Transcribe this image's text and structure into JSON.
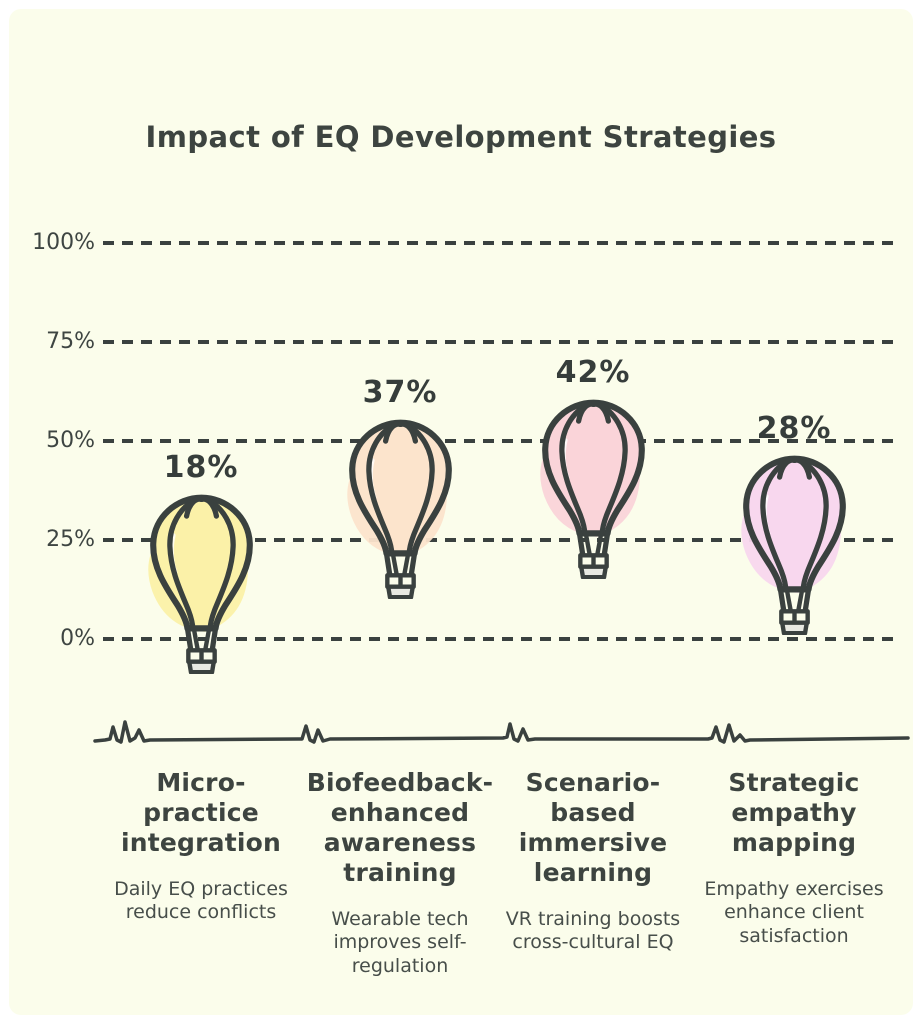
{
  "title": "Impact of EQ Development Strategies",
  "colors": {
    "background": "#fbfdeb",
    "frame": "#ffffff",
    "ink": "#3a413f",
    "text_dark": "#3d4440",
    "text_soft": "#474e4a"
  },
  "chart_data": {
    "type": "bar",
    "marker": "hot-air-balloon",
    "title": "Impact of EQ Development Strategies",
    "categories": [
      "Micro-practice integration",
      "Biofeedback-enhanced awareness training",
      "Scenario-based immersive learning",
      "Strategic empathy mapping"
    ],
    "values": [
      18,
      37,
      42,
      28
    ],
    "value_labels": [
      "18%",
      "37%",
      "42%",
      "28%"
    ],
    "descriptions": [
      "Daily EQ practices reduce conflicts",
      "Wearable tech improves self-regulation",
      "VR training boosts cross-cultural EQ",
      "Empathy exercises enhance client satisfaction"
    ],
    "balloon_colors": [
      "#fbf1a8",
      "#fce4cc",
      "#fad4d9",
      "#f8d7ee"
    ],
    "xlabel": "",
    "ylabel": "",
    "ylim": [
      0,
      100
    ],
    "y_ticks": [
      "100%",
      "75%",
      "50%",
      "25%",
      "0%"
    ],
    "grid": "horizontal-dashed",
    "legend": "none"
  },
  "columns": [
    {
      "heading": "Micro-\npractice\nintegration",
      "description": "Daily EQ practices\nreduce conflicts"
    },
    {
      "heading": "Biofeedback-\nenhanced\nawareness\ntraining",
      "description": "Wearable tech\nimproves self-\nregulation"
    },
    {
      "heading": "Scenario-\nbased\nimmersive\nlearning",
      "description": "VR training boosts\ncross-cultural EQ"
    },
    {
      "heading": "Strategic\nempathy\nmapping",
      "description": "Empathy exercises\nenhance client\nsatisfaction"
    }
  ]
}
